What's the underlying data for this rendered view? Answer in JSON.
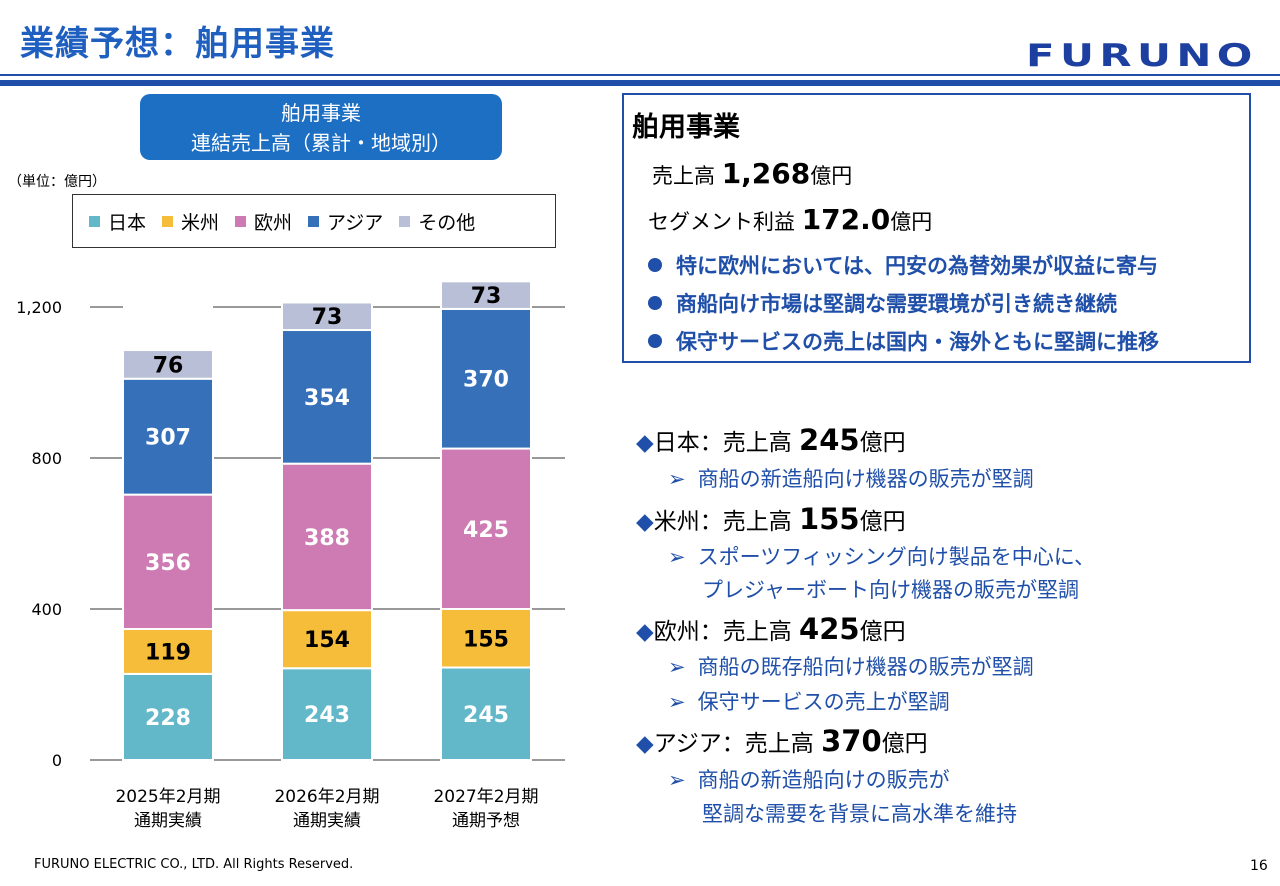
{
  "header": {
    "title": "業績予想：舶用事業",
    "logo": "FURUNO"
  },
  "chart_data": {
    "type": "bar",
    "stacked": true,
    "title": "舶用事業\n連結売上高（累計・地域別）",
    "title_line1": "舶用事業",
    "title_line2": "連結売上高（累計・地域別）",
    "unit_label": "（単位：億円）",
    "categories": [
      [
        "2025年2月期",
        "通期実績"
      ],
      [
        "2026年2月期",
        "通期実績"
      ],
      [
        "2027年2月期",
        "通期予想"
      ]
    ],
    "series": [
      {
        "name": "日本",
        "color": "#62b7c9",
        "values": [
          228,
          243,
          245
        ]
      },
      {
        "name": "米州",
        "color": "#f6bd3b",
        "values": [
          119,
          154,
          155
        ]
      },
      {
        "name": "欧州",
        "color": "#cf7bb3",
        "values": [
          356,
          388,
          425
        ]
      },
      {
        "name": "アジア",
        "color": "#3570b8",
        "values": [
          307,
          354,
          370
        ]
      },
      {
        "name": "その他",
        "color": "#b9bfd6",
        "values": [
          76,
          73,
          73
        ]
      }
    ],
    "ylim": [
      0,
      1200
    ],
    "yticks": [
      0,
      400,
      800,
      1200
    ],
    "ytick_labels": [
      "0",
      "400",
      "800",
      "1,200"
    ],
    "legend_position": "top"
  },
  "summary": {
    "heading": "舶用事業",
    "sales_label": "売上高",
    "sales_value": "1,268",
    "sales_unit": "億円",
    "profit_label": "セグメント利益",
    "profit_value": "172.0",
    "profit_unit": "億円",
    "bullets": [
      "特に欧州においては、円安の為替効果が収益に寄与",
      "商船向け市場は堅調な需要環境が引き続き継続",
      "保守サービスの売上は国内・海外ともに堅調に推移"
    ]
  },
  "regions": [
    {
      "marker": "◆",
      "label": "日本：売上高",
      "value": "245",
      "unit": "億円",
      "notes": [
        "商船の新造船向け機器の販売が堅調"
      ]
    },
    {
      "marker": "◆",
      "label": "米州：売上高",
      "value": "155",
      "unit": "億円",
      "notes": [
        "スポーツフィッシング向け製品を中心に、",
        "プレジャーボート向け機器の販売が堅調"
      ]
    },
    {
      "marker": "◆",
      "label": "欧州：売上高",
      "value": "425",
      "unit": "億円",
      "notes": [
        "商船の既存船向け機器の販売が堅調",
        "保守サービスの売上が堅調"
      ]
    },
    {
      "marker": "◆",
      "label": "アジア：売上高",
      "value": "370",
      "unit": "億円",
      "notes": [
        "商船の新造船向けの販売が",
        "堅調な需要を背景に高水準を維持"
      ]
    }
  ],
  "note_arrow": "➢",
  "footer": {
    "copyright": "FURUNO ELECTRIC CO., LTD. All Rights Reserved.",
    "page": "16"
  }
}
